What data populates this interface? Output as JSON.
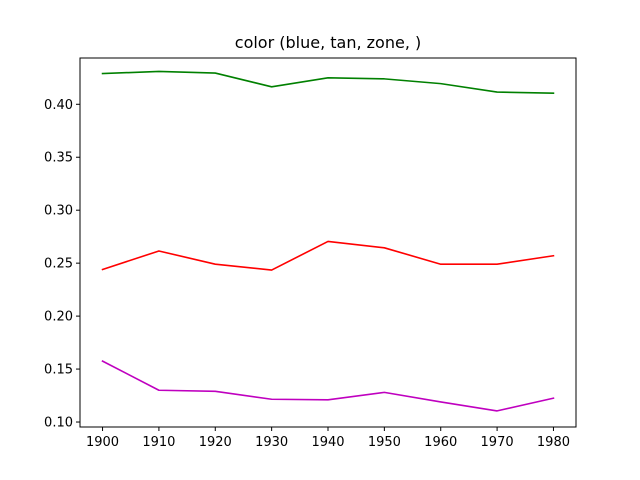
{
  "chart_data": {
    "type": "line",
    "title": "color (blue, tan, zone, )",
    "xlabel": "",
    "ylabel": "",
    "x": [
      1900,
      1910,
      1920,
      1930,
      1940,
      1950,
      1960,
      1970,
      1980
    ],
    "xticks": [
      "1900",
      "1910",
      "1920",
      "1930",
      "1940",
      "1950",
      "1960",
      "1970",
      "1980"
    ],
    "yticks": [
      "0.10",
      "0.15",
      "0.20",
      "0.25",
      "0.30",
      "0.35",
      "0.40"
    ],
    "xlim": [
      1896,
      1984
    ],
    "ylim": [
      0.0953,
      0.4437
    ],
    "grid": false,
    "series": [
      {
        "color": "#008000",
        "values": [
          0.429,
          0.431,
          0.4295,
          0.4165,
          0.425,
          0.424,
          0.4195,
          0.4115,
          0.4105
        ]
      },
      {
        "color": "#ff0000",
        "values": [
          0.244,
          0.2615,
          0.249,
          0.2435,
          0.2705,
          0.2645,
          0.249,
          0.249,
          0.257
        ]
      },
      {
        "color": "#bf00bf",
        "values": [
          0.1575,
          0.13,
          0.129,
          0.1215,
          0.121,
          0.128,
          0.119,
          0.1105,
          0.1225
        ]
      }
    ]
  }
}
